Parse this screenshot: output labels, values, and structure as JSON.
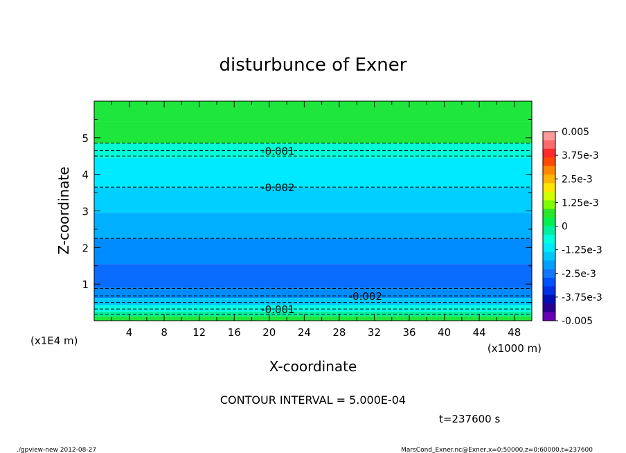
{
  "chart_data": {
    "type": "heatmap",
    "title": "disturbunce of Exner",
    "xlabel": "X-coordinate",
    "ylabel": "Z-coordinate",
    "x_unit": "(x1000 m)",
    "y_unit": "(x1E4 m)",
    "xlim": [
      0,
      50
    ],
    "ylim": [
      0,
      6
    ],
    "x_ticks": [
      4,
      8,
      12,
      16,
      20,
      24,
      28,
      32,
      36,
      40,
      44,
      48
    ],
    "y_ticks": [
      1,
      2,
      3,
      4,
      5
    ],
    "x_tick_labels": [
      "4",
      "8",
      "12",
      "16",
      "20",
      "24",
      "28",
      "32",
      "36",
      "40",
      "44",
      "48"
    ],
    "y_tick_labels": [
      "1",
      "2",
      "3",
      "4",
      "5"
    ],
    "contour_interval_text": "CONTOUR INTERVAL = 5.000E-04",
    "time_text": "t=237600 s",
    "colorbar": {
      "min": -0.005,
      "max": 0.005,
      "tick_labels": [
        "0.005",
        "3.75e-3",
        "2.5e-3",
        "1.25e-3",
        "0",
        "-1.25e-3",
        "-2.5e-3",
        "-3.75e-3",
        "-0.005"
      ],
      "colors_top_to_bottom": [
        "#ff9a9a",
        "#ff6a6a",
        "#ff2a2a",
        "#ff4a00",
        "#ff8a00",
        "#ffb400",
        "#ffe600",
        "#d0ff00",
        "#80ff00",
        "#28e628",
        "#00f050",
        "#00f0a0",
        "#00ffe0",
        "#00eaff",
        "#00c8ff",
        "#00a0ff",
        "#1478ff",
        "#0050ff",
        "#0030e6",
        "#0010b4",
        "#280090",
        "#6a00b4"
      ]
    },
    "bands": [
      {
        "z": [
          5.45,
          6.0
        ],
        "color": "#1ee63c"
      },
      {
        "z": [
          4.85,
          5.45
        ],
        "color": "#1ee63c"
      },
      {
        "z": [
          4.45,
          4.85
        ],
        "color": "#00ffd6"
      },
      {
        "z": [
          3.65,
          4.45
        ],
        "color": "#00eaff"
      },
      {
        "z": [
          2.95,
          3.65
        ],
        "color": "#00d0ff"
      },
      {
        "z": [
          2.25,
          2.95
        ],
        "color": "#00b0ff"
      },
      {
        "z": [
          1.55,
          2.25
        ],
        "color": "#008cff"
      },
      {
        "z": [
          0.9,
          1.55
        ],
        "color": "#0a6cff"
      },
      {
        "z": [
          0.62,
          0.9
        ],
        "color": "#008cff"
      },
      {
        "z": [
          0.42,
          0.62
        ],
        "color": "#00c8ff"
      },
      {
        "z": [
          0.25,
          0.42
        ],
        "color": "#00ffe6"
      },
      {
        "z": [
          0.12,
          0.25
        ],
        "color": "#00f0a0"
      },
      {
        "z": [
          0.0,
          0.12
        ],
        "color": "#1ee63c"
      }
    ],
    "contours": [
      {
        "z": 4.85,
        "label": ""
      },
      {
        "z": 4.65,
        "label": "-0.001",
        "label_x": 21
      },
      {
        "z": 4.5,
        "label": ""
      },
      {
        "z": 3.65,
        "label": "-0.002",
        "label_x": 21
      },
      {
        "z": 2.25,
        "label": ""
      },
      {
        "z": 0.88,
        "label": ""
      },
      {
        "z": 0.68,
        "label": "-0.002",
        "label_x": 31
      },
      {
        "z": 0.5,
        "label": ""
      },
      {
        "z": 0.32,
        "label": "-0.001",
        "label_x": 21
      },
      {
        "z": 0.18,
        "label": ""
      }
    ]
  },
  "footer": {
    "left": "./gpview-new   2012-08-27",
    "right": "MarsCond_Exner.nc@Exner,x=0:50000,z=0:60000,t=237600"
  }
}
